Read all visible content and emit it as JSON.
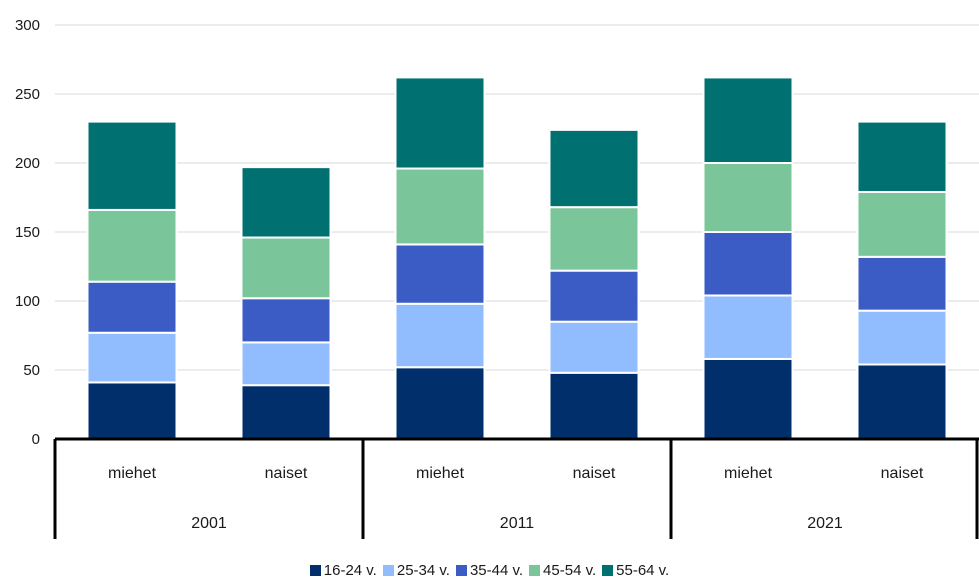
{
  "chart_data": {
    "type": "bar",
    "stacked": true,
    "groups": [
      "2001",
      "2011",
      "2021"
    ],
    "categories": [
      "miehet",
      "naiset",
      "miehet",
      "naiset",
      "miehet",
      "naiset"
    ],
    "ylim": [
      0,
      300
    ],
    "yticks": [
      0,
      50,
      100,
      150,
      200,
      250,
      300
    ],
    "grid": true,
    "legend_position": "bottom",
    "series": [
      {
        "name": "16-24 v.",
        "color": "#002f6c",
        "values": [
          41,
          39,
          52,
          48,
          58,
          54
        ]
      },
      {
        "name": "25-34 v.",
        "color": "#91bdff",
        "values": [
          36,
          31,
          46,
          37,
          46,
          39
        ]
      },
      {
        "name": "35-44 v.",
        "color": "#3b5cc4",
        "values": [
          37,
          32,
          43,
          37,
          46,
          39
        ]
      },
      {
        "name": "45-54 v.",
        "color": "#7ac59a",
        "values": [
          52,
          44,
          55,
          46,
          50,
          47
        ]
      },
      {
        "name": "55-64 v.",
        "color": "#007070",
        "values": [
          64,
          51,
          66,
          56,
          62,
          51
        ]
      }
    ]
  }
}
